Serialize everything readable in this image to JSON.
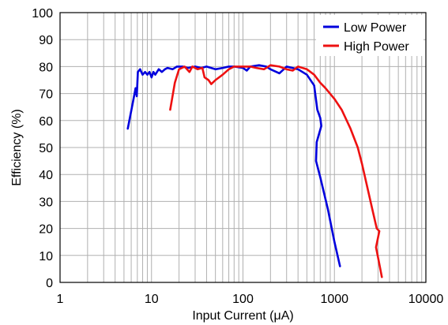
{
  "chart_data": {
    "type": "line",
    "xlabel": "Input Current (μA)",
    "ylabel": "Efficiency (%)",
    "x_scale": "log",
    "xlim": [
      1,
      10000
    ],
    "ylim": [
      0,
      100
    ],
    "x_ticks": [
      1,
      10,
      100,
      1000,
      10000
    ],
    "x_tick_labels": [
      "1",
      "10",
      "100",
      "1000",
      "10000"
    ],
    "y_ticks": [
      0,
      10,
      20,
      30,
      40,
      50,
      60,
      70,
      80,
      90,
      100
    ],
    "y_tick_labels": [
      "0",
      "10",
      "20",
      "30",
      "40",
      "50",
      "60",
      "70",
      "80",
      "90",
      "100"
    ],
    "grid": true,
    "legend_position": "top-right",
    "series": [
      {
        "name": "Low Power",
        "color": "#0000dd",
        "points": [
          [
            5.5,
            57
          ],
          [
            6.2,
            66
          ],
          [
            6.7,
            72
          ],
          [
            6.9,
            69
          ],
          [
            7.1,
            78
          ],
          [
            7.5,
            79
          ],
          [
            8.0,
            77
          ],
          [
            8.5,
            78
          ],
          [
            9.0,
            77
          ],
          [
            9.5,
            78
          ],
          [
            10,
            76
          ],
          [
            10.5,
            78
          ],
          [
            11,
            77
          ],
          [
            12,
            79
          ],
          [
            13,
            78
          ],
          [
            14,
            79
          ],
          [
            15,
            79.5
          ],
          [
            17,
            79
          ],
          [
            19,
            80
          ],
          [
            22,
            80
          ],
          [
            25,
            79.5
          ],
          [
            30,
            80
          ],
          [
            35,
            79.5
          ],
          [
            40,
            80
          ],
          [
            50,
            79
          ],
          [
            60,
            79.5
          ],
          [
            70,
            80
          ],
          [
            80,
            80
          ],
          [
            100,
            79.5
          ],
          [
            110,
            78.5
          ],
          [
            120,
            80
          ],
          [
            150,
            80.5
          ],
          [
            180,
            80
          ],
          [
            200,
            79
          ],
          [
            250,
            77.5
          ],
          [
            300,
            80
          ],
          [
            400,
            79
          ],
          [
            500,
            77
          ],
          [
            600,
            73
          ],
          [
            650,
            64
          ],
          [
            700,
            61
          ],
          [
            720,
            58
          ],
          [
            640,
            52
          ],
          [
            630,
            45
          ],
          [
            700,
            39
          ],
          [
            850,
            27
          ],
          [
            1000,
            15
          ],
          [
            1150,
            6
          ]
        ]
      },
      {
        "name": "High Power",
        "color": "#ee1111",
        "points": [
          [
            16,
            64
          ],
          [
            18,
            74
          ],
          [
            20,
            79
          ],
          [
            23,
            80
          ],
          [
            26,
            78
          ],
          [
            28,
            80
          ],
          [
            32,
            79
          ],
          [
            36,
            79.5
          ],
          [
            38,
            76
          ],
          [
            42,
            75
          ],
          [
            45,
            73.5
          ],
          [
            50,
            75
          ],
          [
            60,
            77
          ],
          [
            70,
            79
          ],
          [
            80,
            80
          ],
          [
            100,
            80
          ],
          [
            120,
            80
          ],
          [
            140,
            79.5
          ],
          [
            170,
            79
          ],
          [
            200,
            80.5
          ],
          [
            250,
            80
          ],
          [
            300,
            79
          ],
          [
            350,
            78.5
          ],
          [
            400,
            80
          ],
          [
            500,
            79
          ],
          [
            600,
            77
          ],
          [
            700,
            74
          ],
          [
            800,
            72
          ],
          [
            1000,
            68
          ],
          [
            1200,
            64
          ],
          [
            1500,
            57
          ],
          [
            1800,
            50
          ],
          [
            2000,
            44
          ],
          [
            2300,
            35
          ],
          [
            2600,
            27
          ],
          [
            2900,
            20
          ],
          [
            3100,
            19
          ],
          [
            2850,
            13
          ],
          [
            3050,
            8
          ],
          [
            3300,
            2
          ]
        ]
      }
    ]
  }
}
